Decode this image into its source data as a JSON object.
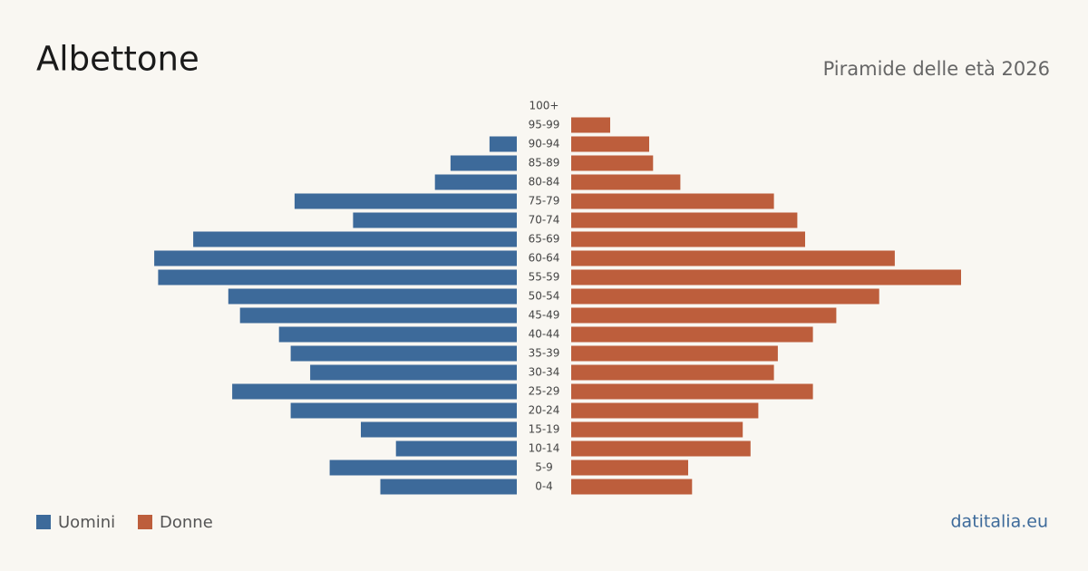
{
  "chart_data": {
    "type": "pyramid",
    "title": "Albettone",
    "subtitle": "Piramide delle età 2026",
    "source": "datitalia.eu",
    "categories": [
      "100+",
      "95-99",
      "90-94",
      "85-89",
      "80-84",
      "75-79",
      "70-74",
      "65-69",
      "60-64",
      "55-59",
      "50-54",
      "45-49",
      "40-44",
      "35-39",
      "30-34",
      "25-29",
      "20-24",
      "15-19",
      "10-14",
      "5-9",
      "0-4"
    ],
    "series": [
      {
        "name": "Uomini",
        "color": "#3d6a9a",
        "values": [
          0,
          0,
          7,
          17,
          21,
          57,
          42,
          83,
          93,
          92,
          74,
          71,
          61,
          58,
          53,
          73,
          58,
          40,
          31,
          48,
          35
        ]
      },
      {
        "name": "Donne",
        "color": "#bd5e3c",
        "values": [
          0,
          10,
          20,
          21,
          28,
          52,
          58,
          60,
          83,
          100,
          79,
          68,
          62,
          53,
          52,
          62,
          48,
          44,
          46,
          30,
          31
        ]
      }
    ]
  }
}
